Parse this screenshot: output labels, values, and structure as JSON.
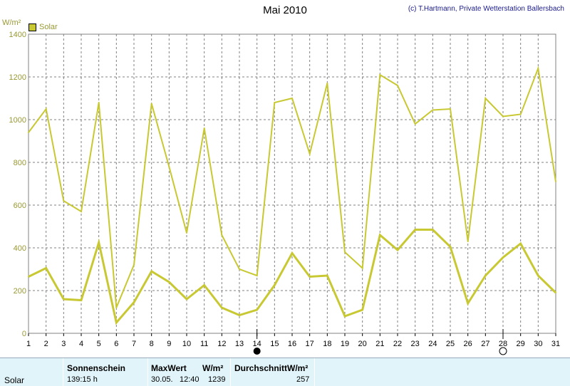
{
  "header": {
    "title": "Mai 2010",
    "copyright": "(c) T.Hartmann, Private Wetterstation Ballersbach",
    "unit": "W/m²",
    "legend_label": "Solar"
  },
  "colors": {
    "series": "#c8c832",
    "grid": "#808080",
    "footer_bg": "#e0f4fa"
  },
  "chart_data": {
    "type": "line",
    "ylabel": "W/m²",
    "ylim": [
      0,
      1400
    ],
    "yticks": [
      0,
      200,
      400,
      600,
      800,
      1000,
      1200,
      1400
    ],
    "x": [
      1,
      2,
      3,
      4,
      5,
      6,
      7,
      8,
      9,
      10,
      11,
      12,
      13,
      14,
      15,
      16,
      17,
      18,
      19,
      20,
      21,
      22,
      23,
      24,
      25,
      26,
      27,
      28,
      29,
      30,
      31
    ],
    "grid": true,
    "legend": "top-left",
    "series": [
      {
        "name": "Solar",
        "role": "max",
        "values": [
          940,
          1050,
          620,
          570,
          1080,
          120,
          320,
          1075,
          780,
          470,
          960,
          460,
          300,
          270,
          1080,
          1100,
          840,
          1170,
          380,
          305,
          1210,
          1160,
          980,
          1045,
          1050,
          430,
          1100,
          1015,
          1025,
          1240,
          710
        ]
      },
      {
        "name": "Solar",
        "role": "mean",
        "values": [
          265,
          305,
          160,
          155,
          425,
          50,
          145,
          290,
          240,
          160,
          225,
          120,
          85,
          110,
          225,
          375,
          265,
          270,
          80,
          110,
          460,
          390,
          485,
          485,
          405,
          140,
          270,
          355,
          420,
          270,
          190
        ]
      }
    ],
    "moon_phases": [
      {
        "day": 14,
        "phase": "new-moon"
      },
      {
        "day": 28,
        "phase": "full-moon"
      }
    ]
  },
  "footer": {
    "row_label": "Solar",
    "sunshine_label": "Sonnenschein",
    "sunshine_value": "139:15 h",
    "maxwert_label": "MaxWert",
    "maxwert_unit": "W/m²",
    "maxwert_date": "30.05.",
    "maxwert_time": "12:40",
    "maxwert_value": "1239",
    "average_label": "DurchschnittW/m²",
    "average_value": "257"
  }
}
